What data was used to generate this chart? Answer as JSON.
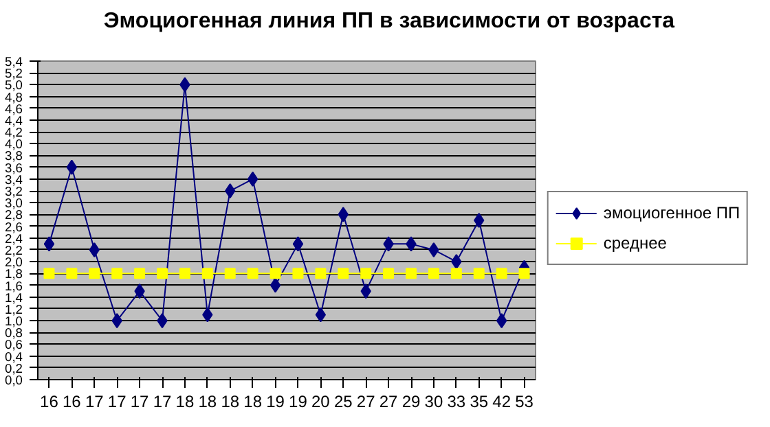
{
  "chart_data": {
    "type": "line",
    "title": "Эмоциогенная линия ПП в зависимости от возраста",
    "categories": [
      "16",
      "16",
      "17",
      "17",
      "17",
      "17",
      "18",
      "18",
      "18",
      "18",
      "19",
      "19",
      "20",
      "25",
      "27",
      "27",
      "29",
      "30",
      "33",
      "35",
      "42",
      "53"
    ],
    "series": [
      {
        "name": "эмоциогенное ПП",
        "color": "#000080",
        "marker": "diamond",
        "values": [
          2.3,
          3.6,
          2.2,
          1.0,
          1.5,
          1.0,
          5.0,
          1.1,
          3.2,
          3.4,
          1.6,
          2.3,
          1.1,
          2.8,
          1.5,
          2.3,
          2.3,
          2.2,
          2.0,
          2.7,
          1.0,
          1.9
        ]
      },
      {
        "name": "среднее",
        "color": "#ffff00",
        "marker": "square",
        "values": [
          1.8,
          1.8,
          1.8,
          1.8,
          1.8,
          1.8,
          1.8,
          1.8,
          1.8,
          1.8,
          1.8,
          1.8,
          1.8,
          1.8,
          1.8,
          1.8,
          1.8,
          1.8,
          1.8,
          1.8,
          1.8,
          1.8
        ]
      }
    ],
    "ylim": [
      0,
      5.4
    ],
    "yticks": [
      {
        "value": 0,
        "label": "0,0"
      },
      {
        "value": 0.2,
        "label": "0,2"
      },
      {
        "value": 0.4,
        "label": "0,4"
      },
      {
        "value": 0.6,
        "label": "0,6"
      },
      {
        "value": 0.8,
        "label": "0,8"
      },
      {
        "value": 1.0,
        "label": "1,0"
      },
      {
        "value": 1.2,
        "label": "1,2"
      },
      {
        "value": 1.4,
        "label": "1,4"
      },
      {
        "value": 1.6,
        "label": "1,6"
      },
      {
        "value": 1.8,
        "label": "1,8"
      },
      {
        "value": 2.0,
        "label": "2,0"
      },
      {
        "value": 2.2,
        "label": "2,2"
      },
      {
        "value": 2.4,
        "label": "2,4"
      },
      {
        "value": 2.6,
        "label": "2,6"
      },
      {
        "value": 2.8,
        "label": "2,8"
      },
      {
        "value": 3.0,
        "label": "3,0"
      },
      {
        "value": 3.2,
        "label": "3,2"
      },
      {
        "value": 3.4,
        "label": "3,4"
      },
      {
        "value": 3.6,
        "label": "3,6"
      },
      {
        "value": 3.8,
        "label": "3,8"
      },
      {
        "value": 4.0,
        "label": "4,0"
      },
      {
        "value": 4.2,
        "label": "4,2"
      },
      {
        "value": 4.4,
        "label": "4,4"
      },
      {
        "value": 4.6,
        "label": "4,6"
      },
      {
        "value": 4.8,
        "label": "4,8"
      },
      {
        "value": 5.0,
        "label": "5,0"
      },
      {
        "value": 5.2,
        "label": "5,2"
      },
      {
        "value": 5.4,
        "label": "5,4"
      }
    ],
    "grid": "y",
    "legend": "right",
    "line_style": "solid"
  }
}
